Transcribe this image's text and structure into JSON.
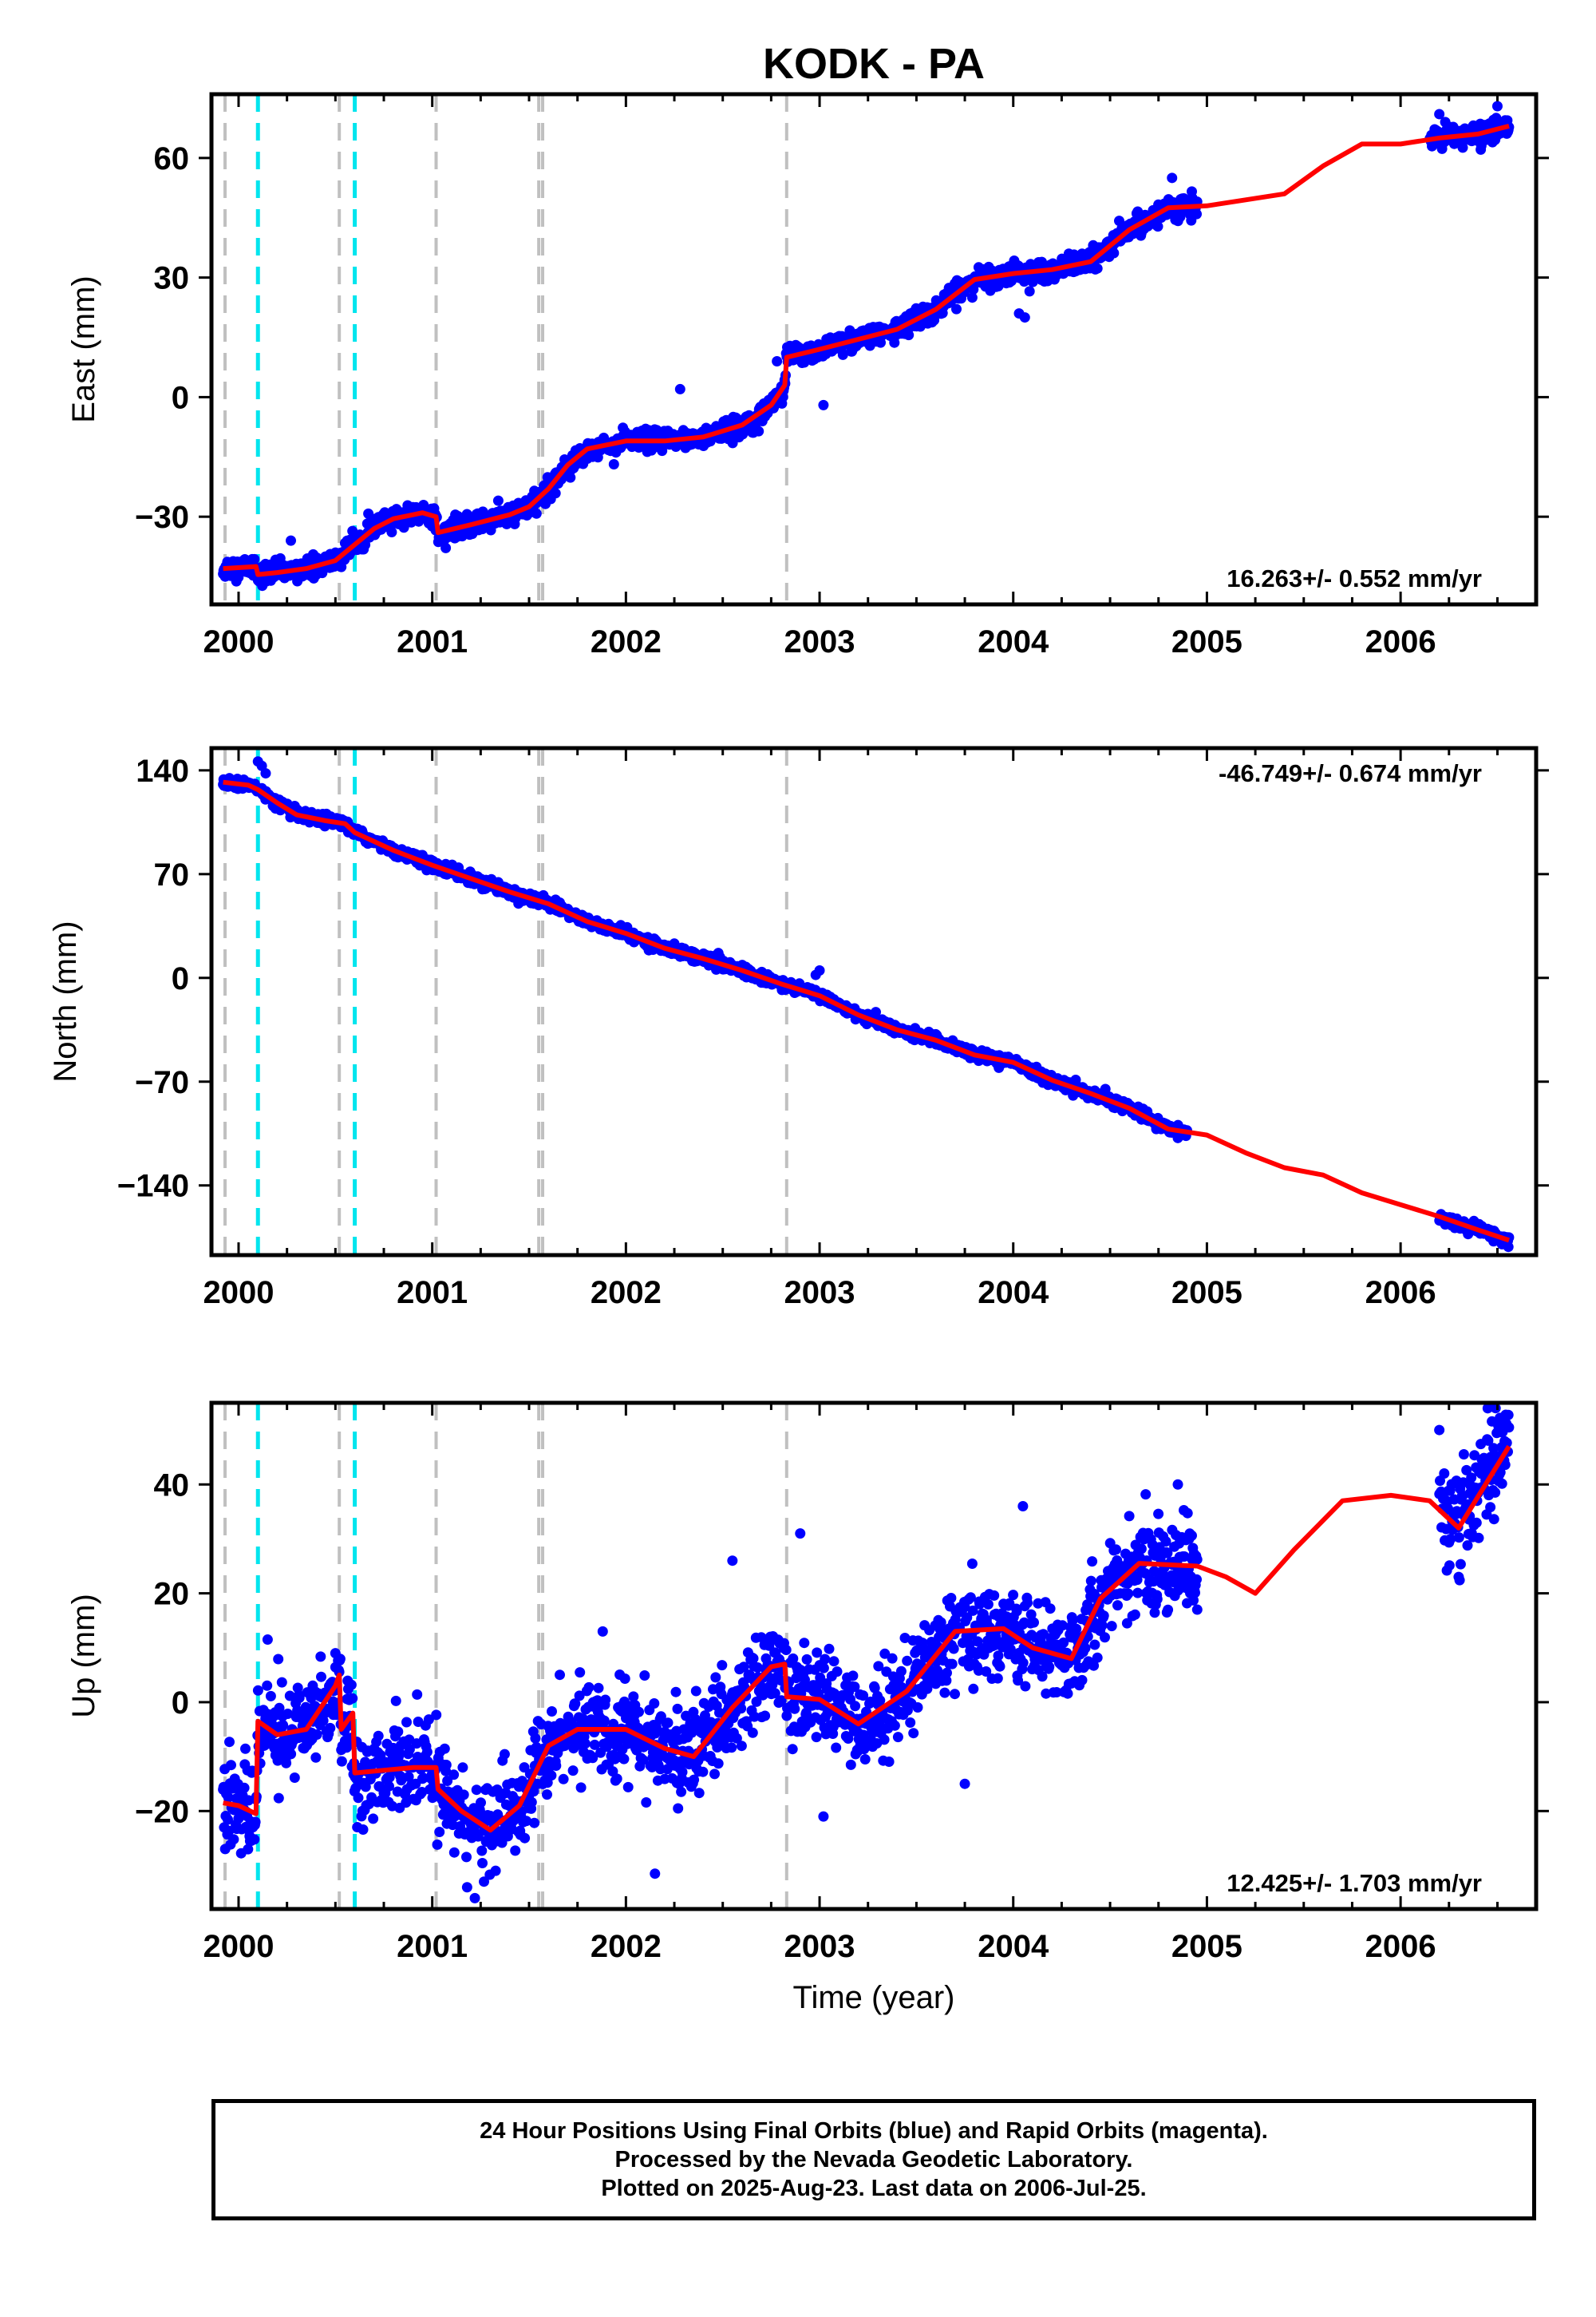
{
  "title": "KODK - PA",
  "xlabel": "Time (year)",
  "footer": {
    "line1": "24 Hour Positions Using Final Orbits (blue) and Rapid Orbits (magenta).",
    "line2": "Processed by the Nevada Geodetic Laboratory.",
    "line3": "Plotted on 2025-Aug-23. Last data on 2006-Jul-25."
  },
  "colors": {
    "final_orbits": "#0000ff",
    "model_fit": "#ff0000",
    "equipment_change": "#c0c0c0",
    "earthquake": "#00e5ee",
    "frame": "#000000"
  },
  "chart_data": [
    {
      "type": "scatter",
      "panel": "east",
      "ylabel": "East (mm)",
      "xlim": [
        1999.86,
        2006.7
      ],
      "ylim": [
        -52,
        76
      ],
      "xticks": [
        2000,
        2001,
        2002,
        2003,
        2004,
        2005,
        2006
      ],
      "yticks": [
        -30,
        0,
        30,
        60
      ],
      "rate": "16.263+/- 0.552 mm/yr",
      "rate_position": "bottom-right",
      "grey_lines": [
        1999.93,
        2000.52,
        2001.02,
        2001.55,
        2001.57,
        2002.83
      ],
      "cyan_lines": [
        2000.1,
        2000.6
      ],
      "fit": {
        "x": [
          1999.92,
          2000.09,
          2000.1,
          2000.2,
          2000.35,
          2000.5,
          2000.6,
          2000.7,
          2000.8,
          2000.95,
          2001.02,
          2001.03,
          2001.2,
          2001.4,
          2001.5,
          2001.6,
          2001.7,
          2001.8,
          2002.0,
          2002.2,
          2002.4,
          2002.6,
          2002.75,
          2002.82,
          2002.83,
          2003.0,
          2003.2,
          2003.4,
          2003.6,
          2003.8,
          2004.0,
          2004.2,
          2004.4,
          2004.6,
          2004.8,
          2005.0,
          2005.2,
          2005.4,
          2005.6,
          2005.8,
          2006.0,
          2006.2,
          2006.4,
          2006.56
        ],
        "y": [
          -43,
          -42.5,
          -44.5,
          -44,
          -43,
          -41,
          -37,
          -33,
          -30.5,
          -29,
          -30,
          -34,
          -32,
          -29.5,
          -27.5,
          -23,
          -17,
          -13,
          -11,
          -11,
          -10,
          -7,
          -2,
          3,
          10,
          12,
          14.5,
          17,
          22,
          29.5,
          31,
          32,
          34,
          42,
          47.5,
          48,
          49.5,
          51,
          58,
          63.5,
          63.5,
          65,
          66,
          68
        ]
      },
      "gaps": [
        [
          2004.95,
          2006.15
        ]
      ],
      "noise": 1.3,
      "outliers": [
        {
          "x": 2002.28,
          "y": 2
        },
        {
          "x": 2003.02,
          "y": -2
        },
        {
          "x": 2004.03,
          "y": 21
        },
        {
          "x": 2004.06,
          "y": 20
        },
        {
          "x": 2004.82,
          "y": 55
        },
        {
          "x": 2000.27,
          "y": -36
        },
        {
          "x": 2002.78,
          "y": 9
        },
        {
          "x": 2006.2,
          "y": 71
        },
        {
          "x": 2006.5,
          "y": 73
        }
      ]
    },
    {
      "type": "scatter",
      "panel": "north",
      "ylabel": "North (mm)",
      "xlim": [
        1999.86,
        2006.7
      ],
      "ylim": [
        -187,
        155
      ],
      "xticks": [
        2000,
        2001,
        2002,
        2003,
        2004,
        2005,
        2006
      ],
      "yticks": [
        -140,
        -70,
        0,
        70,
        140
      ],
      "rate": "-46.749+/- 0.674 mm/yr",
      "rate_position": "top-right",
      "grey_lines": [
        1999.93,
        2000.52,
        2001.02,
        2001.55,
        2001.57,
        2002.83
      ],
      "cyan_lines": [
        2000.1,
        2000.6
      ],
      "fit": {
        "x": [
          1999.92,
          2000.05,
          2000.1,
          2000.2,
          2000.3,
          2000.45,
          2000.55,
          2000.6,
          2000.8,
          2001.0,
          2001.2,
          2001.4,
          2001.6,
          2001.8,
          2002.0,
          2002.2,
          2002.4,
          2002.6,
          2002.8,
          2003.0,
          2003.2,
          2003.4,
          2003.6,
          2003.8,
          2004.0,
          2004.2,
          2004.4,
          2004.6,
          2004.8,
          2005.0,
          2005.2,
          2005.4,
          2005.6,
          2005.8,
          2006.0,
          2006.2,
          2006.4,
          2006.56
        ],
        "y": [
          132,
          130,
          127,
          118,
          110,
          106,
          104,
          98,
          86,
          76,
          67,
          58,
          50,
          38,
          30,
          20,
          13,
          5,
          -4,
          -12,
          -25,
          -35,
          -42,
          -52,
          -57,
          -69,
          -78,
          -88,
          -102,
          -106,
          -118,
          -128,
          -133,
          -145,
          -153,
          -161,
          -170,
          -177
        ]
      },
      "gaps": [
        [
          2004.9,
          2006.2
        ]
      ],
      "noise": 1.8,
      "outliers": [
        {
          "x": 2000.1,
          "y": 146
        },
        {
          "x": 2000.12,
          "y": 143
        },
        {
          "x": 2000.14,
          "y": 138
        },
        {
          "x": 2003.0,
          "y": 5
        },
        {
          "x": 2002.98,
          "y": 2
        },
        {
          "x": 2004.85,
          "y": -108
        }
      ]
    },
    {
      "type": "scatter",
      "panel": "up",
      "ylabel": "Up (mm)",
      "xlabel": "Time (year)",
      "xlim": [
        1999.86,
        2006.7
      ],
      "ylim": [
        -38,
        55
      ],
      "xticks": [
        2000,
        2001,
        2002,
        2003,
        2004,
        2005,
        2006
      ],
      "yticks": [
        -20,
        0,
        20,
        40
      ],
      "rate": "12.425+/- 1.703 mm/yr",
      "rate_position": "bottom-right",
      "grey_lines": [
        1999.93,
        2000.52,
        2001.02,
        2001.55,
        2001.57,
        2002.83
      ],
      "cyan_lines": [
        2000.1,
        2000.6
      ],
      "fit": {
        "x": [
          1999.92,
          2000.0,
          2000.09,
          2000.1,
          2000.2,
          2000.35,
          2000.5,
          2000.52,
          2000.53,
          2000.59,
          2000.6,
          2000.75,
          2000.9,
          2001.02,
          2001.03,
          2001.15,
          2001.3,
          2001.45,
          2001.6,
          2001.75,
          2002.0,
          2002.2,
          2002.35,
          2002.55,
          2002.75,
          2002.82,
          2002.83,
          2003.0,
          2003.2,
          2003.45,
          2003.7,
          2003.95,
          2004.1,
          2004.3,
          2004.45,
          2004.65,
          2004.95,
          2005.1,
          2005.25,
          2005.45,
          2005.7,
          2005.95,
          2006.15,
          2006.3,
          2006.56
        ],
        "y": [
          -18.5,
          -19,
          -20.5,
          -3.5,
          -6,
          -5,
          3,
          5,
          -5,
          -2,
          -13,
          -12.5,
          -12,
          -12,
          -16,
          -20,
          -23.5,
          -19,
          -8,
          -5,
          -5,
          -8.5,
          -10,
          -1,
          6.5,
          7,
          1,
          0.5,
          -4,
          2,
          13,
          13.5,
          10,
          8,
          19,
          25.5,
          25,
          23,
          20,
          28,
          37,
          38,
          37,
          32,
          47
        ]
      },
      "gaps": [
        [
          2004.95,
          2006.2
        ]
      ],
      "noise": 4.2,
      "outliers": [
        {
          "x": 2002.9,
          "y": 31
        },
        {
          "x": 2002.55,
          "y": 26
        },
        {
          "x": 2004.05,
          "y": 36
        },
        {
          "x": 2004.85,
          "y": 40
        },
        {
          "x": 2004.95,
          "y": 17
        },
        {
          "x": 2003.02,
          "y": -21
        },
        {
          "x": 2002.15,
          "y": -31.5
        },
        {
          "x": 2001.22,
          "y": -36
        },
        {
          "x": 2001.18,
          "y": -34
        },
        {
          "x": 2000.15,
          "y": 11.5
        },
        {
          "x": 2000.5,
          "y": 9
        },
        {
          "x": 2006.45,
          "y": 54
        },
        {
          "x": 2006.2,
          "y": 50
        },
        {
          "x": 2006.3,
          "y": 23
        },
        {
          "x": 2003.75,
          "y": -15
        }
      ]
    }
  ]
}
